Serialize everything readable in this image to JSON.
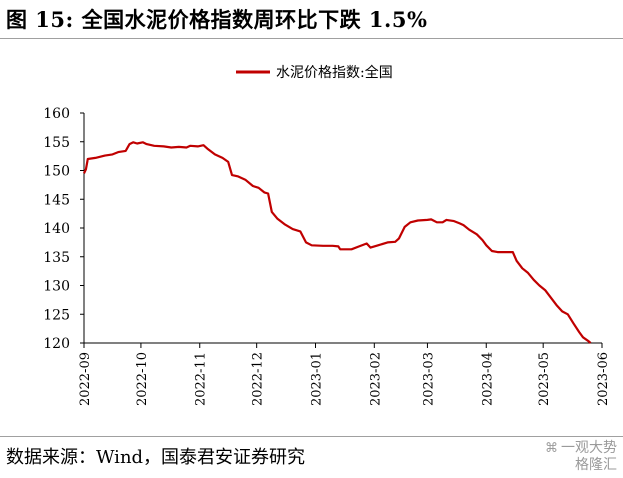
{
  "figure": {
    "title": "图 15:  全国水泥价格指数周环比下跌 1.5%",
    "source": "数据来源：Wind，国泰君安证券研究",
    "watermark": {
      "icon": "wechat-icon",
      "line1": "一观大势",
      "line2": "格隆汇"
    }
  },
  "chart_data": {
    "type": "line",
    "title": "",
    "xlabel": "",
    "ylabel": "",
    "ylim": [
      120,
      160
    ],
    "yticks": [
      120,
      125,
      130,
      135,
      140,
      145,
      150,
      155,
      160
    ],
    "xlim": [
      "2022-09-01",
      "2023-06-01"
    ],
    "xticks": [
      "2022-09",
      "2022-10",
      "2022-11",
      "2022-12",
      "2023-01",
      "2023-02",
      "2023-03",
      "2023-04",
      "2023-05",
      "2023-06"
    ],
    "grid": false,
    "legend": "top-center",
    "series": [
      {
        "name": "水泥价格指数:全国",
        "color": "#c00000",
        "points": [
          [
            "2022-09-01",
            149.5
          ],
          [
            "2022-09-02",
            150.2
          ],
          [
            "2022-09-03",
            152.0
          ],
          [
            "2022-09-07",
            152.2
          ],
          [
            "2022-09-12",
            152.6
          ],
          [
            "2022-09-16",
            152.8
          ],
          [
            "2022-09-19",
            153.2
          ],
          [
            "2022-09-23",
            153.4
          ],
          [
            "2022-09-25",
            154.6
          ],
          [
            "2022-09-27",
            154.9
          ],
          [
            "2022-09-29",
            154.7
          ],
          [
            "2022-10-02",
            154.9
          ],
          [
            "2022-10-04",
            154.6
          ],
          [
            "2022-10-08",
            154.3
          ],
          [
            "2022-10-13",
            154.2
          ],
          [
            "2022-10-17",
            154.0
          ],
          [
            "2022-10-21",
            154.1
          ],
          [
            "2022-10-25",
            154.0
          ],
          [
            "2022-10-27",
            154.3
          ],
          [
            "2022-10-31",
            154.2
          ],
          [
            "2022-11-03",
            154.4
          ],
          [
            "2022-11-05",
            153.8
          ],
          [
            "2022-11-09",
            152.8
          ],
          [
            "2022-11-13",
            152.2
          ],
          [
            "2022-11-16",
            151.5
          ],
          [
            "2022-11-18",
            149.2
          ],
          [
            "2022-11-21",
            149.0
          ],
          [
            "2022-11-25",
            148.4
          ],
          [
            "2022-11-29",
            147.3
          ],
          [
            "2022-12-02",
            147.0
          ],
          [
            "2022-12-05",
            146.2
          ],
          [
            "2022-12-07",
            146.0
          ],
          [
            "2022-12-09",
            142.8
          ],
          [
            "2022-12-12",
            141.6
          ],
          [
            "2022-12-16",
            140.6
          ],
          [
            "2022-12-20",
            139.8
          ],
          [
            "2022-12-24",
            139.4
          ],
          [
            "2022-12-27",
            137.5
          ],
          [
            "2022-12-30",
            137.0
          ],
          [
            "2023-01-05",
            136.9
          ],
          [
            "2023-01-10",
            136.9
          ],
          [
            "2023-01-13",
            136.8
          ],
          [
            "2023-01-14",
            136.3
          ],
          [
            "2023-01-20",
            136.3
          ],
          [
            "2023-01-24",
            136.8
          ],
          [
            "2023-01-28",
            137.3
          ],
          [
            "2023-01-30",
            136.6
          ],
          [
            "2023-02-03",
            137.0
          ],
          [
            "2023-02-08",
            137.5
          ],
          [
            "2023-02-12",
            137.6
          ],
          [
            "2023-02-14",
            138.2
          ],
          [
            "2023-02-17",
            140.2
          ],
          [
            "2023-02-20",
            141.0
          ],
          [
            "2023-02-24",
            141.3
          ],
          [
            "2023-03-01",
            141.4
          ],
          [
            "2023-03-03",
            141.5
          ],
          [
            "2023-03-06",
            141.0
          ],
          [
            "2023-03-09",
            141.0
          ],
          [
            "2023-03-11",
            141.4
          ],
          [
            "2023-03-15",
            141.2
          ],
          [
            "2023-03-18",
            140.8
          ],
          [
            "2023-03-20",
            140.5
          ],
          [
            "2023-03-23",
            139.7
          ],
          [
            "2023-03-27",
            138.9
          ],
          [
            "2023-03-30",
            137.9
          ],
          [
            "2023-04-01",
            137.0
          ],
          [
            "2023-04-04",
            136.0
          ],
          [
            "2023-04-07",
            135.8
          ],
          [
            "2023-04-12",
            135.8
          ],
          [
            "2023-04-15",
            135.8
          ],
          [
            "2023-04-17",
            134.3
          ],
          [
            "2023-04-20",
            133.0
          ],
          [
            "2023-04-23",
            132.2
          ],
          [
            "2023-04-26",
            131.0
          ],
          [
            "2023-04-29",
            130.0
          ],
          [
            "2023-05-02",
            129.2
          ],
          [
            "2023-05-05",
            127.9
          ],
          [
            "2023-05-08",
            126.6
          ],
          [
            "2023-05-11",
            125.5
          ],
          [
            "2023-05-14",
            125.0
          ],
          [
            "2023-05-17",
            123.4
          ],
          [
            "2023-05-20",
            121.9
          ],
          [
            "2023-05-22",
            121.0
          ],
          [
            "2023-05-25",
            120.3
          ],
          [
            "2023-05-26",
            120.0
          ]
        ]
      }
    ]
  }
}
